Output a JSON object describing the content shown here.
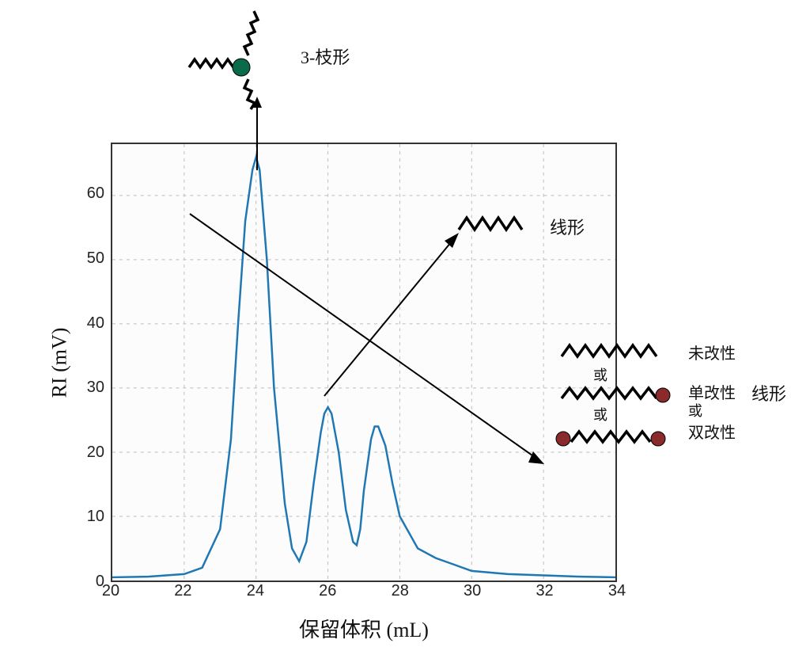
{
  "chart": {
    "type": "line",
    "xlabel": "保留体积 (mL)",
    "ylabel": "RI (mV)",
    "xlim": [
      20,
      34
    ],
    "ylim": [
      0,
      68
    ],
    "xtick_step": 2,
    "ytick_step": 10,
    "xticks": [
      20,
      22,
      24,
      26,
      28,
      30,
      32,
      34
    ],
    "yticks": [
      0,
      10,
      20,
      30,
      40,
      50,
      60
    ],
    "label_fontsize": 26,
    "tick_fontsize": 20,
    "line_color": "#1f77b4",
    "line_width": 2.5,
    "background_color": "#fcfcfc",
    "grid_color": "#bdbdbd",
    "grid_dash": true,
    "border_color": "#333333",
    "series": [
      {
        "x": 20.0,
        "y": 0.5
      },
      {
        "x": 21.0,
        "y": 0.6
      },
      {
        "x": 22.0,
        "y": 1.0
      },
      {
        "x": 22.5,
        "y": 2.0
      },
      {
        "x": 23.0,
        "y": 8.0
      },
      {
        "x": 23.3,
        "y": 22.0
      },
      {
        "x": 23.5,
        "y": 40.0
      },
      {
        "x": 23.7,
        "y": 56.0
      },
      {
        "x": 23.9,
        "y": 64.0
      },
      {
        "x": 24.0,
        "y": 66.0
      },
      {
        "x": 24.1,
        "y": 64.0
      },
      {
        "x": 24.3,
        "y": 50.0
      },
      {
        "x": 24.5,
        "y": 30.0
      },
      {
        "x": 24.8,
        "y": 12.0
      },
      {
        "x": 25.0,
        "y": 5.0
      },
      {
        "x": 25.2,
        "y": 3.0
      },
      {
        "x": 25.4,
        "y": 6.0
      },
      {
        "x": 25.6,
        "y": 15.0
      },
      {
        "x": 25.8,
        "y": 23.0
      },
      {
        "x": 25.9,
        "y": 26.0
      },
      {
        "x": 26.0,
        "y": 27.0
      },
      {
        "x": 26.1,
        "y": 26.0
      },
      {
        "x": 26.3,
        "y": 20.0
      },
      {
        "x": 26.5,
        "y": 11.0
      },
      {
        "x": 26.7,
        "y": 6.0
      },
      {
        "x": 26.8,
        "y": 5.5
      },
      {
        "x": 26.9,
        "y": 8.0
      },
      {
        "x": 27.0,
        "y": 14.0
      },
      {
        "x": 27.2,
        "y": 22.0
      },
      {
        "x": 27.3,
        "y": 24.0
      },
      {
        "x": 27.4,
        "y": 24.0
      },
      {
        "x": 27.6,
        "y": 21.0
      },
      {
        "x": 27.8,
        "y": 15.0
      },
      {
        "x": 28.0,
        "y": 10.0
      },
      {
        "x": 28.5,
        "y": 5.0
      },
      {
        "x": 29.0,
        "y": 3.5
      },
      {
        "x": 29.5,
        "y": 2.5
      },
      {
        "x": 30.0,
        "y": 1.5
      },
      {
        "x": 31.0,
        "y": 1.0
      },
      {
        "x": 32.0,
        "y": 0.8
      },
      {
        "x": 33.0,
        "y": 0.6
      },
      {
        "x": 34.0,
        "y": 0.5
      }
    ]
  },
  "annotations": {
    "branched_label": "3-枝形",
    "linear_label": "线形",
    "linear_group_label": "线形",
    "unmodified_label": "未改性",
    "mono_modified_label": "单改性",
    "di_modified_label": "双改性",
    "or_label": "或",
    "zigzag_color": "#000000",
    "endcap_color": "#8a2a2a",
    "core_color": "#0a6b4a",
    "arrow_color": "#000000"
  }
}
